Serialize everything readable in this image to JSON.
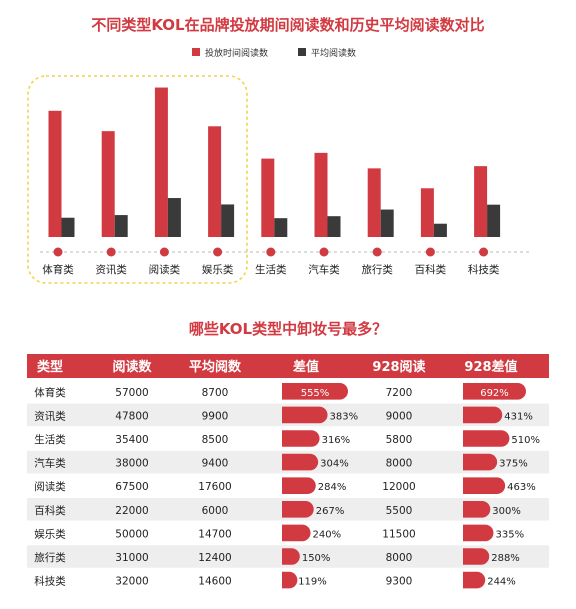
{
  "colors": {
    "red": "#d23a42",
    "dark": "#3a3a3a",
    "highlight_border": "#f2d44a",
    "table_header_bg": "#d23a42",
    "row_odd_bg": "#ffffff",
    "row_even_bg": "#eeeeee",
    "pill_light": "#e07a80"
  },
  "chart_data": [
    {
      "type": "bar",
      "title": "不同类型KOL在品牌投放期间阅读数和历史平均阅读数对比",
      "categories": [
        "体育类",
        "资讯类",
        "阅读类",
        "娱乐类",
        "生活类",
        "汽车类",
        "旅行类",
        "百科类",
        "科技类"
      ],
      "series": [
        {
          "name": "投放时间阅读数",
          "values": [
            57000,
            47800,
            67500,
            50000,
            35400,
            38000,
            31000,
            22000,
            32000
          ],
          "color": "#d23a42"
        },
        {
          "name": "平均阅读数",
          "values": [
            8700,
            9900,
            17600,
            14700,
            8500,
            9400,
            12400,
            6000,
            14600
          ],
          "color": "#3a3a3a"
        }
      ],
      "ylim": [
        0,
        70000
      ],
      "grid": false,
      "legend_position": "top-center",
      "highlighted_categories": [
        "体育类",
        "资讯类",
        "阅读类",
        "娱乐类"
      ]
    },
    {
      "type": "table",
      "title": "哪些KOL类型中卸妆号最多？",
      "columns": [
        "类型",
        "阅读数",
        "平均阅数",
        "差值",
        "928阅读",
        "928差值"
      ],
      "rows": [
        {
          "type": "体育类",
          "reads": "57000",
          "avg": "8700",
          "diff": "555%",
          "reads928": "7200",
          "diff928": "692%"
        },
        {
          "type": "资讯类",
          "reads": "47800",
          "avg": "9900",
          "diff": "383%",
          "reads928": "9000",
          "diff928": "431%"
        },
        {
          "type": "生活类",
          "reads": "35400",
          "avg": "8500",
          "diff": "316%",
          "reads928": "5800",
          "diff928": "510%"
        },
        {
          "type": "汽车类",
          "reads": "38000",
          "avg": "9400",
          "diff": "304%",
          "reads928": "8000",
          "diff928": "375%"
        },
        {
          "type": "阅读类",
          "reads": "67500",
          "avg": "17600",
          "diff": "284%",
          "reads928": "12000",
          "diff928": "463%"
        },
        {
          "type": "百科类",
          "reads": "22000",
          "avg": "6000",
          "diff": "267%",
          "reads928": "5500",
          "diff928": "300%"
        },
        {
          "type": "娱乐类",
          "reads": "50000",
          "avg": "14700",
          "diff": "240%",
          "reads928": "11500",
          "diff928": "335%"
        },
        {
          "type": "旅行类",
          "reads": "31000",
          "avg": "12400",
          "diff": "150%",
          "reads928": "8000",
          "diff928": "288%"
        },
        {
          "type": "科技类",
          "reads": "32000",
          "avg": "14600",
          "diff": "119%",
          "reads928": "9300",
          "diff928": "244%"
        }
      ],
      "diff_max": 555,
      "diff928_max": 692
    }
  ]
}
